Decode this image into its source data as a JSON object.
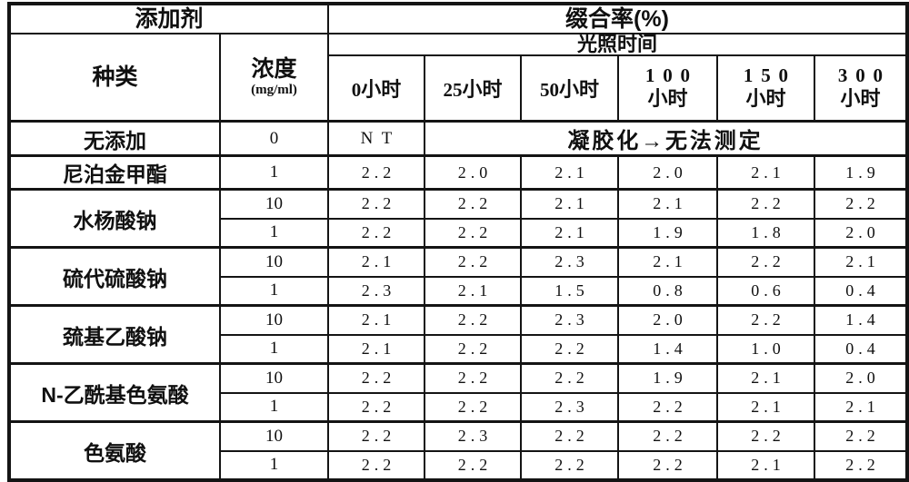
{
  "page": {
    "background": "#ffffff",
    "line_color": "#141414",
    "text_color": "#101010"
  },
  "table": {
    "header": {
      "additive": "添加剂",
      "conjugation": "缀合率(%)",
      "species": "种类",
      "concentration": "浓度",
      "concentration_unit": "(mg/ml)",
      "light_time": "光照时间",
      "times": [
        {
          "hours": "0",
          "unit": "小时",
          "two_line": false
        },
        {
          "hours": "25",
          "unit": "小时",
          "two_line": false
        },
        {
          "hours": "50",
          "unit": "小时",
          "two_line": false
        },
        {
          "hours": "100",
          "unit": "小时",
          "two_line": true
        },
        {
          "hours": "150",
          "unit": "小时",
          "two_line": true
        },
        {
          "hours": "300",
          "unit": "小时",
          "two_line": true
        }
      ]
    },
    "no_additive_row": {
      "name": "无添加",
      "concentration": "0",
      "t0_value": "NT",
      "merged_note": "凝胶化→无法测定"
    },
    "groups": [
      {
        "name": "尼泊金甲酯",
        "rows": [
          {
            "concentration": "1",
            "values": [
              "2.2",
              "2.0",
              "2.1",
              "2.0",
              "2.1",
              "1.9"
            ]
          }
        ]
      },
      {
        "name": "水杨酸钠",
        "rows": [
          {
            "concentration": "10",
            "values": [
              "2.2",
              "2.2",
              "2.1",
              "2.1",
              "2.2",
              "2.2"
            ]
          },
          {
            "concentration": "1",
            "values": [
              "2.2",
              "2.2",
              "2.1",
              "1.9",
              "1.8",
              "2.0"
            ]
          }
        ]
      },
      {
        "name": "硫代硫酸钠",
        "rows": [
          {
            "concentration": "10",
            "values": [
              "2.1",
              "2.2",
              "2.3",
              "2.1",
              "2.2",
              "2.1"
            ]
          },
          {
            "concentration": "1",
            "values": [
              "2.3",
              "2.1",
              "1.5",
              "0.8",
              "0.6",
              "0.4"
            ]
          }
        ]
      },
      {
        "name": "巯基乙酸钠",
        "rows": [
          {
            "concentration": "10",
            "values": [
              "2.1",
              "2.2",
              "2.3",
              "2.0",
              "2.2",
              "1.4"
            ]
          },
          {
            "concentration": "1",
            "values": [
              "2.1",
              "2.2",
              "2.2",
              "1.4",
              "1.0",
              "0.4"
            ]
          }
        ]
      },
      {
        "name": "N-乙酰基色氨酸",
        "rows": [
          {
            "concentration": "10",
            "values": [
              "2.2",
              "2.2",
              "2.2",
              "1.9",
              "2.1",
              "2.0"
            ]
          },
          {
            "concentration": "1",
            "values": [
              "2.2",
              "2.2",
              "2.3",
              "2.2",
              "2.1",
              "2.1"
            ]
          }
        ]
      },
      {
        "name": "色氨酸",
        "rows": [
          {
            "concentration": "10",
            "values": [
              "2.2",
              "2.3",
              "2.2",
              "2.2",
              "2.2",
              "2.2"
            ]
          },
          {
            "concentration": "1",
            "values": [
              "2.2",
              "2.2",
              "2.2",
              "2.2",
              "2.1",
              "2.2"
            ]
          }
        ]
      }
    ]
  }
}
